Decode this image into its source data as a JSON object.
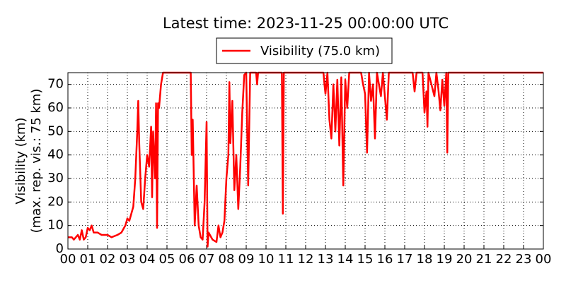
{
  "chart_data": {
    "type": "line",
    "title": "Latest time: 2023-11-25 00:00:00 UTC",
    "y_label": [
      "Visibility (km)",
      "(max. rep. vis.: 75 km)"
    ],
    "x": [
      0,
      0.2,
      0.3,
      0.5,
      0.6,
      0.7,
      0.8,
      0.9,
      1.0,
      1.1,
      1.2,
      1.3,
      1.5,
      1.7,
      2.0,
      2.2,
      2.5,
      2.7,
      2.9,
      3.0,
      3.1,
      3.2,
      3.3,
      3.4,
      3.5,
      3.55,
      3.6,
      3.7,
      3.8,
      3.9,
      4.0,
      4.1,
      4.2,
      4.25,
      4.3,
      4.4,
      4.45,
      4.5,
      4.55,
      4.6,
      4.7,
      4.8,
      5.0,
      6.2,
      6.25,
      6.3,
      6.4,
      6.5,
      6.6,
      6.7,
      6.8,
      6.9,
      7.0,
      7.05,
      7.1,
      7.3,
      7.5,
      7.6,
      7.7,
      7.8,
      7.9,
      8.0,
      8.1,
      8.15,
      8.2,
      8.3,
      8.4,
      8.5,
      8.6,
      8.7,
      8.8,
      8.9,
      9.0,
      9.1,
      9.2,
      9.5,
      9.55,
      9.6,
      10.8,
      10.85,
      10.9,
      12.9,
      12.95,
      13.0,
      13.1,
      13.2,
      13.3,
      13.4,
      13.5,
      13.6,
      13.7,
      13.8,
      13.9,
      14.0,
      14.1,
      14.2,
      14.8,
      14.9,
      15.0,
      15.1,
      15.2,
      15.3,
      15.4,
      15.5,
      15.6,
      15.8,
      15.9,
      16.1,
      16.2,
      17.4,
      17.5,
      17.6,
      17.9,
      18.0,
      18.1,
      18.15,
      18.2,
      18.5,
      18.6,
      18.7,
      18.8,
      18.9,
      19.0,
      19.1,
      19.15,
      19.2,
      24
    ],
    "series": [
      {
        "name": "Visibility (75.0 km)",
        "color": "#ff0000",
        "values": [
          5,
          5,
          4,
          6,
          4,
          8,
          4,
          5,
          9,
          8,
          10,
          7,
          7,
          6,
          6,
          5,
          6,
          7,
          10,
          13,
          12,
          15,
          18,
          30,
          50,
          63,
          45,
          20,
          17,
          30,
          40,
          35,
          52,
          22,
          50,
          30,
          62,
          9,
          62,
          60,
          70,
          75,
          75,
          75,
          40,
          55,
          10,
          27,
          10,
          5,
          4,
          20,
          54,
          1,
          7,
          4,
          3,
          10,
          5,
          7,
          12,
          30,
          40,
          71,
          45,
          63,
          25,
          40,
          17,
          35,
          58,
          74,
          75,
          27,
          75,
          75,
          70,
          75,
          75,
          15,
          75,
          75,
          70,
          66,
          75,
          55,
          47,
          70,
          50,
          72,
          44,
          73,
          27,
          72,
          60,
          75,
          75,
          70,
          66,
          41,
          75,
          63,
          70,
          47,
          75,
          65,
          75,
          55,
          75,
          75,
          67,
          75,
          75,
          58,
          67,
          52,
          75,
          65,
          75,
          68,
          59,
          72,
          61,
          75,
          41,
          75,
          75
        ]
      }
    ],
    "xlim": [
      0,
      24
    ],
    "xticks": [
      {
        "value": 0,
        "label": "00"
      },
      {
        "value": 1,
        "label": "01"
      },
      {
        "value": 2,
        "label": "02"
      },
      {
        "value": 3,
        "label": "03"
      },
      {
        "value": 4,
        "label": "04"
      },
      {
        "value": 5,
        "label": "05"
      },
      {
        "value": 6,
        "label": "06"
      },
      {
        "value": 7,
        "label": "07"
      },
      {
        "value": 8,
        "label": "08"
      },
      {
        "value": 9,
        "label": "09"
      },
      {
        "value": 10,
        "label": "10"
      },
      {
        "value": 11,
        "label": "11"
      },
      {
        "value": 12,
        "label": "12"
      },
      {
        "value": 13,
        "label": "13"
      },
      {
        "value": 14,
        "label": "14"
      },
      {
        "value": 15,
        "label": "15"
      },
      {
        "value": 16,
        "label": "16"
      },
      {
        "value": 17,
        "label": "17"
      },
      {
        "value": 18,
        "label": "18"
      },
      {
        "value": 19,
        "label": "19"
      },
      {
        "value": 20,
        "label": "20"
      },
      {
        "value": 21,
        "label": "21"
      },
      {
        "value": 22,
        "label": "22"
      },
      {
        "value": 23,
        "label": "23"
      },
      {
        "value": 24,
        "label": "00"
      }
    ],
    "ylim": [
      0,
      75
    ],
    "yticks": [
      0,
      10,
      20,
      30,
      40,
      50,
      60,
      70
    ],
    "grid": true
  }
}
